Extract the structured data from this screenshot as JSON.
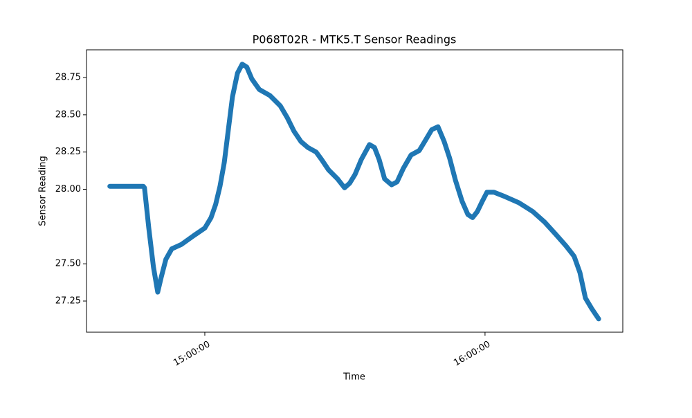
{
  "chart_data": {
    "type": "line",
    "title": "P068T02R - MTK5.T Sensor Readings",
    "x_label": "Time",
    "y_label": "Sensor Reading",
    "x": [
      "14:39:40",
      "14:46:50",
      "14:47:05",
      "14:48:00",
      "14:49:00",
      "14:49:55",
      "14:50:40",
      "14:51:40",
      "14:52:55",
      "14:55:00",
      "14:57:40",
      "15:00:00",
      "15:01:20",
      "15:02:20",
      "15:03:15",
      "15:04:10",
      "15:05:00",
      "15:05:55",
      "15:07:00",
      "15:08:00",
      "15:09:00",
      "15:10:05",
      "15:11:40",
      "15:13:55",
      "15:16:10",
      "15:17:40",
      "15:19:05",
      "15:20:35",
      "15:22:05",
      "15:23:50",
      "15:25:00",
      "15:26:30",
      "15:28:25",
      "15:29:55",
      "15:31:00",
      "15:32:10",
      "15:33:30",
      "15:35:15",
      "15:36:20",
      "15:37:20",
      "15:38:30",
      "15:40:00",
      "15:41:10",
      "15:42:30",
      "15:44:10",
      "15:45:55",
      "15:47:05",
      "15:48:35",
      "15:49:55",
      "15:51:15",
      "15:52:25",
      "15:53:40",
      "15:55:05",
      "15:56:20",
      "15:57:20",
      "15:58:20",
      "15:59:25",
      "16:00:25",
      "16:01:55",
      "16:04:20",
      "16:07:15",
      "16:10:15",
      "16:12:45",
      "16:15:05",
      "16:17:20",
      "16:19:05",
      "16:20:20",
      "16:21:30",
      "16:22:50",
      "16:24:20"
    ],
    "series": [
      {
        "color": "#1f77b4",
        "values": [
          28.02,
          28.02,
          28.01,
          27.74,
          27.48,
          27.31,
          27.41,
          27.53,
          27.6,
          27.63,
          27.69,
          27.74,
          27.81,
          27.9,
          28.02,
          28.18,
          28.39,
          28.62,
          28.78,
          28.84,
          28.82,
          28.74,
          28.67,
          28.63,
          28.56,
          28.48,
          28.39,
          28.32,
          28.28,
          28.25,
          28.2,
          28.13,
          28.07,
          28.01,
          28.04,
          28.1,
          28.2,
          28.3,
          28.28,
          28.2,
          28.07,
          28.03,
          28.05,
          28.14,
          28.23,
          28.26,
          28.32,
          28.4,
          28.42,
          28.32,
          28.21,
          28.06,
          27.92,
          27.83,
          27.81,
          27.85,
          27.92,
          27.98,
          27.98,
          27.95,
          27.91,
          27.85,
          27.78,
          27.7,
          27.62,
          27.55,
          27.44,
          27.27,
          27.2,
          27.13
        ]
      }
    ],
    "xlim": [
      "14:34:40",
      "16:29:30"
    ],
    "xticks": [
      "15:00:00",
      "16:00:00"
    ],
    "ylim": [
      27.041,
      28.936
    ],
    "yticks": [
      27.25,
      {
        "value": 27.5,
        "label": "27.50"
      },
      28.75,
      {
        "value": 28.0,
        "label": "28.00"
      },
      28.25,
      {
        "value": 28.5,
        "label": "28.50"
      }
    ],
    "grid": false
  }
}
